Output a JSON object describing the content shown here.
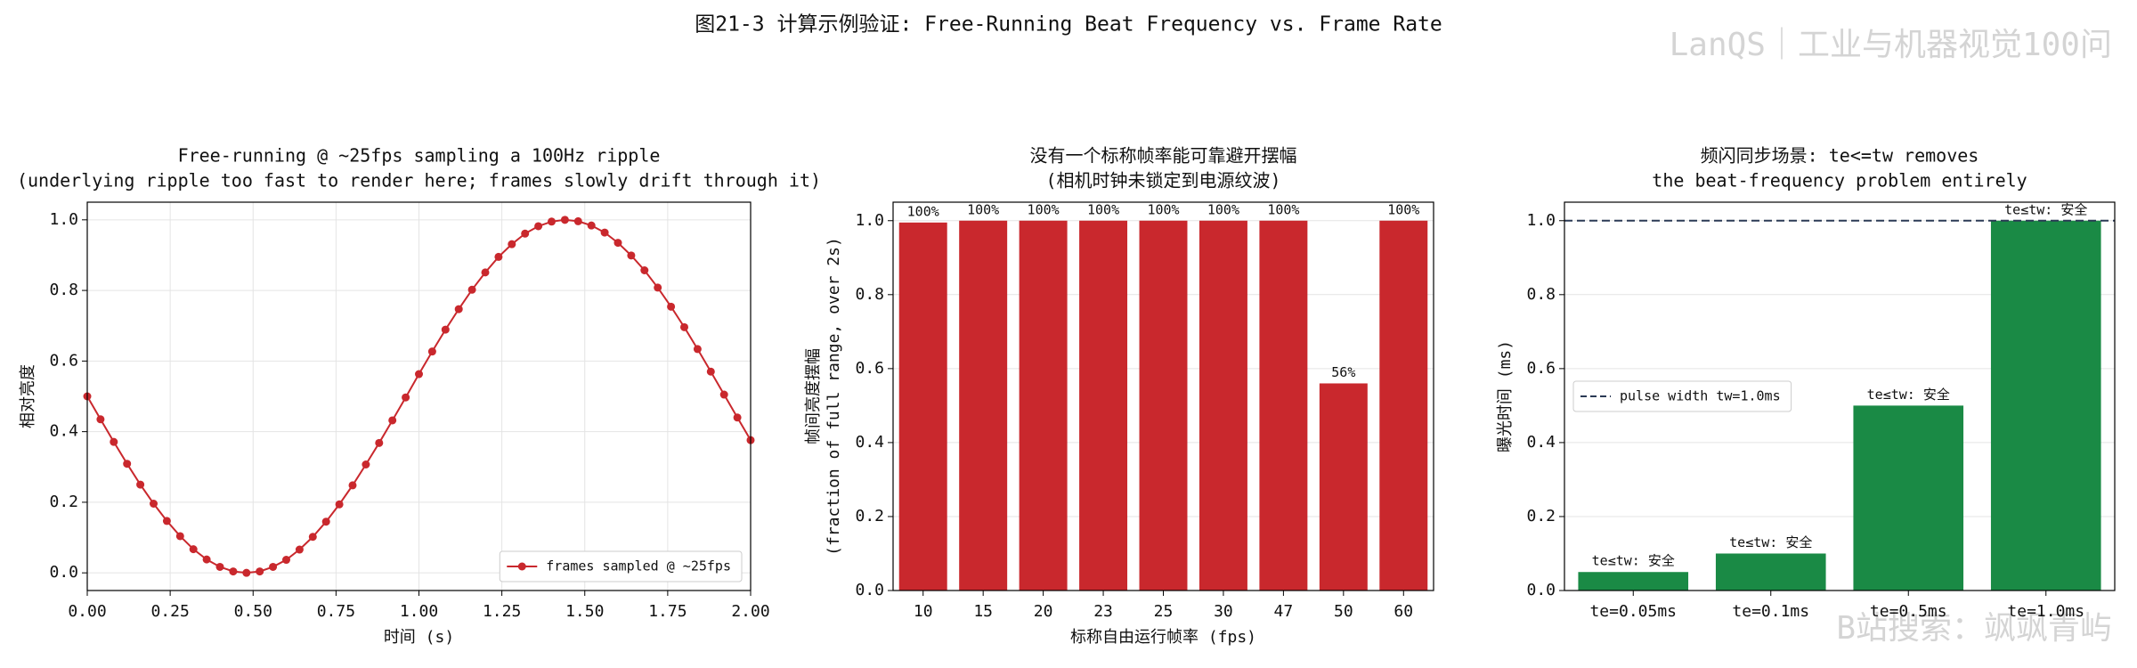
{
  "title": "图21-3  计算示例验证: Free-Running Beat Frequency vs. Frame Rate",
  "watermark": "LanQS｜工业与机器视觉100问",
  "footer_watermark": "B站搜索：飒飒青屿",
  "chart_data": [
    {
      "type": "line",
      "title": [
        "Free-running @ ~25fps sampling a 100Hz ripple",
        "(underlying ripple too fast to render here; frames slowly drift through it)"
      ],
      "xlabel": "时间 (s)",
      "ylabel": "相对亮度",
      "x": [
        0,
        0.04,
        0.08,
        0.12,
        0.16,
        0.2,
        0.24,
        0.28,
        0.32,
        0.36,
        0.4,
        0.44,
        0.48,
        0.52,
        0.56,
        0.6,
        0.64,
        0.68,
        0.72,
        0.76,
        0.8,
        0.84,
        0.88,
        0.92,
        0.96,
        1.0,
        1.04,
        1.08,
        1.12,
        1.16,
        1.2,
        1.24,
        1.28,
        1.32,
        1.36,
        1.4,
        1.44,
        1.48,
        1.52,
        1.56,
        1.6,
        1.64,
        1.68,
        1.72,
        1.76,
        1.8,
        1.84,
        1.88,
        1.92,
        1.96,
        2.0
      ],
      "series": [
        {
          "name": "frames sampled @ ~25fps",
          "color": "#c9282d",
          "values": [
            0.5,
            0.435,
            0.371,
            0.309,
            0.25,
            0.196,
            0.147,
            0.104,
            0.067,
            0.038,
            0.017,
            0.004,
            0.0,
            0.004,
            0.017,
            0.037,
            0.066,
            0.102,
            0.145,
            0.194,
            0.248,
            0.307,
            0.368,
            0.432,
            0.497,
            0.563,
            0.627,
            0.689,
            0.747,
            0.802,
            0.851,
            0.895,
            0.931,
            0.961,
            0.982,
            0.995,
            1.0,
            0.996,
            0.984,
            0.964,
            0.935,
            0.899,
            0.857,
            0.808,
            0.754,
            0.696,
            0.634,
            0.57,
            0.505,
            0.44,
            0.376
          ]
        }
      ],
      "xlim": [
        0,
        2.0
      ],
      "xticks": [
        {
          "value": 0,
          "label": "0.00"
        },
        0.25,
        {
          "value": 0.5,
          "label": "0.50"
        },
        0.75,
        {
          "value": 1.0,
          "label": "1.00"
        },
        1.25,
        {
          "value": 1.5,
          "label": "1.50"
        },
        1.75,
        {
          "value": 2.0,
          "label": "2.00"
        }
      ],
      "ylim": [
        -0.05,
        1.05
      ],
      "yticks": [
        {
          "value": 0,
          "label": "0.0"
        },
        0.2,
        0.4,
        0.6,
        0.8,
        {
          "value": 1.0,
          "label": "1.0"
        }
      ],
      "grid": "both",
      "legend": "lower right"
    },
    {
      "type": "bar",
      "title": [
        "没有一个标称帧率能可靠避开摆幅",
        "(相机时钟未锁定到电源纹波)"
      ],
      "xlabel": "标称自由运行帧率 (fps)",
      "ylabel": [
        "帧间亮度摆幅",
        "(fraction of full range, over 2s)"
      ],
      "categories": [
        "10",
        "15",
        "20",
        "23",
        "25",
        "30",
        "47",
        "50",
        "60"
      ],
      "values": [
        0.995,
        1.0,
        1.0,
        1.0,
        1.0,
        1.0,
        1.0,
        0.56,
        1.0
      ],
      "value_labels": [
        "100%",
        "100%",
        "100%",
        "100%",
        "100%",
        "100%",
        "100%",
        "56%",
        "100%"
      ],
      "color": "#c9282d",
      "ylim": [
        0,
        1.05
      ],
      "yticks": [
        {
          "value": 0,
          "label": "0.0"
        },
        0.2,
        0.4,
        0.6,
        0.8,
        {
          "value": 1.0,
          "label": "1.0"
        }
      ],
      "grid": "y"
    },
    {
      "type": "bar",
      "title": [
        "频闪同步场景: te<=tw removes",
        "the beat-frequency problem entirely"
      ],
      "ylabel": "曝光时间 (ms)",
      "categories": [
        "te=0.05ms",
        "te=0.1ms",
        "te=0.5ms",
        "te=1.0ms"
      ],
      "values": [
        0.05,
        0.1,
        0.5,
        1.0
      ],
      "value_labels": [
        "te≤tw: 安全",
        "te≤tw: 安全",
        "te≤tw: 安全",
        "te≤tw: 安全"
      ],
      "color": "#1a8a45",
      "hline": {
        "value": 1.0,
        "name": "pulse width tw=1.0ms",
        "color": "#2b3a55"
      },
      "ylim": [
        0,
        1.05
      ],
      "yticks": [
        {
          "value": 0,
          "label": "0.0"
        },
        0.2,
        0.4,
        0.6,
        0.8,
        {
          "value": 1.0,
          "label": "1.0"
        }
      ],
      "grid": "y",
      "legend": "center left"
    }
  ]
}
